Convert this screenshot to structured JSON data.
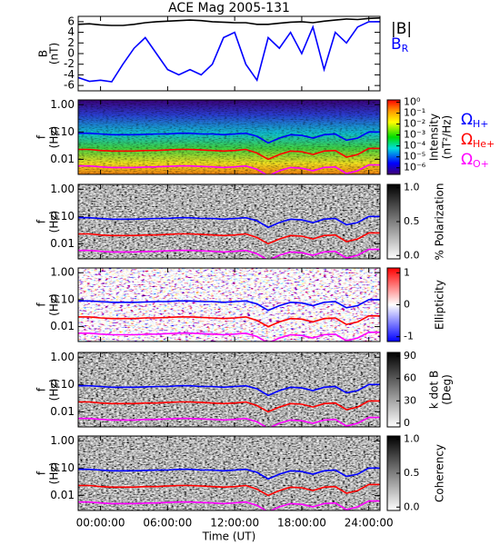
{
  "title": "ACE Mag 2005-131",
  "xaxis": {
    "xlabel": "Time (UT)",
    "xlim": [
      -2,
      25
    ],
    "xticks": [
      {
        "value": 0,
        "label": "00:00:00"
      },
      {
        "value": 6,
        "label": "06:00:00"
      },
      {
        "value": 12,
        "label": "12:00:00"
      },
      {
        "value": 18,
        "label": "18:00:00"
      },
      {
        "value": 24,
        "label": "24:00:00"
      }
    ]
  },
  "chart_data": [
    {
      "type": "line",
      "ylabel": "B",
      "ylabel_unit": "(nT)",
      "ylim": [
        -7,
        7
      ],
      "yticks": [
        -6,
        -4,
        -2,
        0,
        2,
        4,
        6
      ],
      "x": [
        -2,
        -1,
        0,
        1,
        2,
        3,
        4,
        5,
        6,
        7,
        8,
        9,
        10,
        11,
        12,
        13,
        14,
        15,
        16,
        17,
        18,
        19,
        20,
        21,
        22,
        23,
        24,
        25
      ],
      "series": [
        {
          "name": "|B|",
          "color": "#000000",
          "values": [
            5.5,
            5.6,
            5.4,
            5.3,
            5.3,
            5.5,
            5.8,
            6.0,
            6.1,
            6.2,
            6.3,
            6.2,
            6.0,
            5.9,
            5.8,
            5.8,
            5.5,
            5.5,
            5.7,
            5.9,
            6.0,
            5.8,
            6.1,
            6.3,
            6.5,
            6.4,
            6.6,
            6.7
          ]
        },
        {
          "name": "B",
          "subscript": "R",
          "color": "#0000ff",
          "values": [
            -4.5,
            -5.2,
            -5.0,
            -5.3,
            -2,
            1,
            3,
            0,
            -3,
            -4,
            -3,
            -4,
            -2,
            3,
            4,
            -2,
            -5,
            3,
            1,
            4,
            0,
            5,
            -3,
            4,
            2,
            5,
            6,
            6
          ]
        }
      ]
    },
    {
      "type": "spectrogram",
      "ylabel": "f",
      "ylabel_unit": "(Hz)",
      "log": true,
      "ylim": [
        0.0028,
        1.5
      ],
      "yticks": [
        0.01,
        {
          "value": 0.1,
          "label": "0.10"
        },
        {
          "value": 1,
          "label": "1.00"
        }
      ],
      "colormap": "rainbow",
      "colorbar": {
        "label": "Intensity",
        "unit": "(nT²/Hz)",
        "log": true,
        "lim": [
          2.5e-07,
          1.6
        ],
        "ticks": [
          {
            "value": 1,
            "label": "10⁰"
          },
          {
            "value": 0.1,
            "label": "10⁻¹"
          },
          {
            "value": 0.01,
            "label": "10⁻²"
          },
          {
            "value": 0.001,
            "label": "10⁻³"
          },
          {
            "value": 0.0001,
            "label": "10⁻⁴"
          },
          {
            "value": 1e-05,
            "label": "10⁻⁵"
          },
          {
            "value": 1e-06,
            "label": "10⁻⁶"
          }
        ]
      },
      "x": [
        -2,
        -1,
        0,
        1,
        2,
        3,
        4,
        5,
        6,
        7,
        8,
        9,
        10,
        11,
        12,
        13,
        14,
        15,
        16,
        17,
        18,
        19,
        20,
        21,
        22,
        23,
        24,
        25
      ],
      "series": [
        {
          "name": "Ω",
          "subscript": "H+",
          "color": "#0000ff",
          "values": [
            0.09,
            0.09,
            0.085,
            0.08,
            0.08,
            0.08,
            0.082,
            0.085,
            0.085,
            0.09,
            0.09,
            0.085,
            0.085,
            0.08,
            0.085,
            0.09,
            0.07,
            0.04,
            0.06,
            0.08,
            0.075,
            0.06,
            0.08,
            0.085,
            0.05,
            0.06,
            0.1,
            0.1
          ]
        },
        {
          "name": "Ω",
          "subscript": "He+",
          "color": "#ff0000",
          "values": [
            0.023,
            0.023,
            0.021,
            0.02,
            0.02,
            0.02,
            0.021,
            0.021,
            0.022,
            0.023,
            0.023,
            0.022,
            0.021,
            0.02,
            0.021,
            0.023,
            0.017,
            0.01,
            0.015,
            0.02,
            0.019,
            0.015,
            0.02,
            0.021,
            0.012,
            0.015,
            0.025,
            0.025
          ]
        },
        {
          "name": "Ω",
          "subscript": "O+",
          "color": "#ff00ff",
          "values": [
            0.0057,
            0.0057,
            0.0053,
            0.005,
            0.005,
            0.005,
            0.0052,
            0.0053,
            0.0055,
            0.0057,
            0.0057,
            0.0055,
            0.0053,
            0.005,
            0.0053,
            0.0057,
            0.0043,
            0.0025,
            0.0038,
            0.005,
            0.0047,
            0.0038,
            0.005,
            0.0053,
            0.003,
            0.0038,
            0.0062,
            0.0062
          ]
        }
      ]
    },
    {
      "type": "spectrogram",
      "ylabel": "f",
      "ylabel_unit": "(Hz)",
      "log": true,
      "ylim": [
        0.0028,
        1.5
      ],
      "yticks": [
        0.01,
        {
          "value": 0.1,
          "label": "0.10"
        },
        {
          "value": 1,
          "label": "1.00"
        }
      ],
      "colormap": "gray",
      "colorbar": {
        "label": "% Polarization",
        "lim": [
          -0.05,
          1.05
        ],
        "ticks": [
          {
            "value": 0,
            "label": "0.0"
          },
          0.5,
          {
            "value": 1,
            "label": "1.0"
          }
        ]
      }
    },
    {
      "type": "spectrogram",
      "ylabel": "f",
      "ylabel_unit": "(Hz)",
      "log": true,
      "ylim": [
        0.0028,
        1.5
      ],
      "yticks": [
        0.01,
        {
          "value": 0.1,
          "label": "0.10"
        },
        {
          "value": 1,
          "label": "1.00"
        }
      ],
      "colormap": "bluered",
      "colorbar": {
        "label": "Ellipticity",
        "lim": [
          -1.15,
          1.15
        ],
        "ticks": [
          -1,
          0,
          1
        ]
      }
    },
    {
      "type": "spectrogram",
      "ylabel": "f",
      "ylabel_unit": "(Hz)",
      "log": true,
      "ylim": [
        0.0028,
        1.5
      ],
      "yticks": [
        0.01,
        {
          "value": 0.1,
          "label": "0.10"
        },
        {
          "value": 1,
          "label": "1.00"
        }
      ],
      "colormap": "gray",
      "colorbar": {
        "label": "k dot B",
        "unit": "(Deg)",
        "lim": [
          -5,
          95
        ],
        "ticks": [
          0,
          30,
          60,
          90
        ]
      }
    },
    {
      "type": "spectrogram",
      "ylabel": "f",
      "ylabel_unit": "(Hz)",
      "log": true,
      "ylim": [
        0.0028,
        1.5
      ],
      "yticks": [
        0.01,
        {
          "value": 0.1,
          "label": "0.10"
        },
        {
          "value": 1,
          "label": "1.00"
        }
      ],
      "colormap": "gray",
      "colorbar": {
        "label": "Coherency",
        "lim": [
          -0.05,
          1.05
        ],
        "ticks": [
          {
            "value": 0,
            "label": "0.0"
          },
          0.5,
          {
            "value": 1,
            "label": "1.0"
          }
        ]
      }
    }
  ]
}
